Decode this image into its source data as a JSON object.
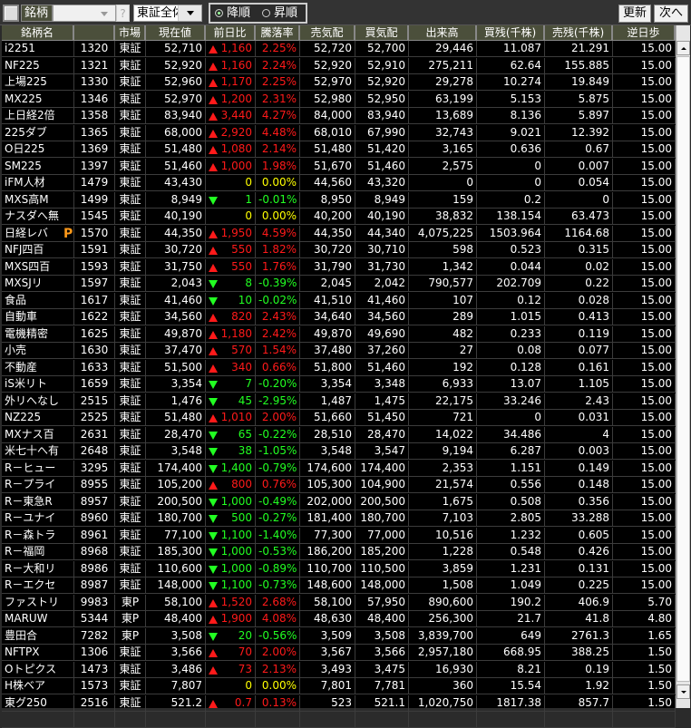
{
  "toolbar": {
    "label": "銘柄",
    "combo_value": "",
    "help": "?",
    "market_select": "東証全体",
    "sort_desc": "降順",
    "sort_asc": "昇順",
    "sort_selected": "desc",
    "refresh": "更新",
    "next": "次へ"
  },
  "colors": {
    "up": "#ff1a1a",
    "down": "#22ff22",
    "flat": "#ffff00",
    "header_bg": "#4b4f3b"
  },
  "columns": [
    "銘柄名",
    "",
    "市場",
    "現在値",
    "前日比",
    "騰落率",
    "売気配",
    "買気配",
    "出来高",
    "買残(千株)",
    "売残(千株)",
    "逆日歩"
  ],
  "rows": [
    [
      "i2251",
      "1320",
      "東証",
      "52,710",
      "up",
      "1,160",
      "2.25%",
      "52,720",
      "52,700",
      "29,446",
      "11.087",
      "21.291",
      "15.00",
      ""
    ],
    [
      "NF225",
      "1321",
      "東証",
      "52,920",
      "up",
      "1,160",
      "2.24%",
      "52,920",
      "52,910",
      "275,211",
      "62.64",
      "155.885",
      "15.00",
      ""
    ],
    [
      "上場225",
      "1330",
      "東証",
      "52,960",
      "up",
      "1,170",
      "2.25%",
      "52,970",
      "52,920",
      "29,278",
      "10.274",
      "19.849",
      "15.00",
      ""
    ],
    [
      "MX225",
      "1346",
      "東証",
      "52,970",
      "up",
      "1,200",
      "2.31%",
      "52,980",
      "52,950",
      "63,199",
      "5.153",
      "5.875",
      "15.00",
      ""
    ],
    [
      "上日経2倍",
      "1358",
      "東証",
      "83,940",
      "up",
      "3,440",
      "4.27%",
      "84,000",
      "83,940",
      "13,689",
      "8.136",
      "5.897",
      "15.00",
      ""
    ],
    [
      "225ダブ",
      "1365",
      "東証",
      "68,000",
      "up",
      "2,920",
      "4.48%",
      "68,010",
      "67,990",
      "32,743",
      "9.021",
      "12.392",
      "15.00",
      ""
    ],
    [
      "O日225",
      "1369",
      "東証",
      "51,480",
      "up",
      "1,080",
      "2.14%",
      "51,480",
      "51,420",
      "3,165",
      "0.636",
      "0.67",
      "15.00",
      ""
    ],
    [
      "SM225",
      "1397",
      "東証",
      "51,460",
      "up",
      "1,000",
      "1.98%",
      "51,670",
      "51,460",
      "2,575",
      "0",
      "0.007",
      "15.00",
      ""
    ],
    [
      "iFM人材",
      "1479",
      "東証",
      "43,430",
      "flat",
      "0",
      "0.00%",
      "44,560",
      "43,320",
      "0",
      "0",
      "0.054",
      "15.00",
      ""
    ],
    [
      "MXS高M",
      "1499",
      "東証",
      "8,949",
      "down",
      "1",
      "-0.01%",
      "8,950",
      "8,949",
      "159",
      "0.2",
      "0",
      "15.00",
      ""
    ],
    [
      "ナスダへ無",
      "1545",
      "東証",
      "40,190",
      "flat",
      "0",
      "0.00%",
      "40,200",
      "40,190",
      "38,832",
      "138.154",
      "63.473",
      "15.00",
      ""
    ],
    [
      "日経レバ",
      "1570",
      "東証",
      "44,350",
      "up",
      "1,950",
      "4.59%",
      "44,350",
      "44,340",
      "4,075,225",
      "1503.964",
      "1164.68",
      "15.00",
      "P"
    ],
    [
      "NFJ四百",
      "1591",
      "東証",
      "30,720",
      "up",
      "550",
      "1.82%",
      "30,720",
      "30,710",
      "598",
      "0.523",
      "0.315",
      "15.00",
      ""
    ],
    [
      "MXS四百",
      "1593",
      "東証",
      "31,750",
      "up",
      "550",
      "1.76%",
      "31,790",
      "31,730",
      "1,342",
      "0.044",
      "0.02",
      "15.00",
      ""
    ],
    [
      "MXSJリ",
      "1597",
      "東証",
      "2,043",
      "down",
      "8",
      "-0.39%",
      "2,045",
      "2,042",
      "790,577",
      "202.709",
      "0.22",
      "15.00",
      ""
    ],
    [
      "食品",
      "1617",
      "東証",
      "41,460",
      "down",
      "10",
      "-0.02%",
      "41,510",
      "41,460",
      "107",
      "0.12",
      "0.028",
      "15.00",
      ""
    ],
    [
      "自動車",
      "1622",
      "東証",
      "34,560",
      "up",
      "820",
      "2.43%",
      "34,640",
      "34,560",
      "289",
      "1.015",
      "0.413",
      "15.00",
      ""
    ],
    [
      "電機精密",
      "1625",
      "東証",
      "49,870",
      "up",
      "1,180",
      "2.42%",
      "49,870",
      "49,690",
      "482",
      "0.233",
      "0.119",
      "15.00",
      ""
    ],
    [
      "小売",
      "1630",
      "東証",
      "37,470",
      "up",
      "570",
      "1.54%",
      "37,480",
      "37,260",
      "27",
      "0.08",
      "0.077",
      "15.00",
      ""
    ],
    [
      "不動産",
      "1633",
      "東証",
      "51,500",
      "up",
      "340",
      "0.66%",
      "51,800",
      "51,460",
      "192",
      "0.128",
      "0.161",
      "15.00",
      ""
    ],
    [
      "iS米リト",
      "1659",
      "東証",
      "3,354",
      "down",
      "7",
      "-0.20%",
      "3,354",
      "3,348",
      "6,933",
      "13.07",
      "1.105",
      "15.00",
      ""
    ],
    [
      "外リへなし",
      "2515",
      "東証",
      "1,476",
      "down",
      "45",
      "-2.95%",
      "1,487",
      "1,475",
      "22,175",
      "33.246",
      "2.43",
      "15.00",
      ""
    ],
    [
      "NZ225",
      "2525",
      "東証",
      "51,480",
      "up",
      "1,010",
      "2.00%",
      "51,660",
      "51,450",
      "721",
      "0",
      "0.031",
      "15.00",
      ""
    ],
    [
      "MXナス百",
      "2631",
      "東証",
      "28,470",
      "down",
      "65",
      "-0.22%",
      "28,510",
      "28,470",
      "14,022",
      "34.486",
      "4",
      "15.00",
      ""
    ],
    [
      "米七十へ有",
      "2648",
      "東証",
      "3,548",
      "down",
      "38",
      "-1.05%",
      "3,548",
      "3,547",
      "9,194",
      "6.287",
      "0.003",
      "15.00",
      ""
    ],
    [
      "R－ヒュー",
      "3295",
      "東証",
      "174,400",
      "down",
      "1,400",
      "-0.79%",
      "174,600",
      "174,400",
      "2,353",
      "1.151",
      "0.149",
      "15.00",
      ""
    ],
    [
      "R－プライ",
      "8955",
      "東証",
      "105,200",
      "up",
      "800",
      "0.76%",
      "105,300",
      "104,900",
      "21,574",
      "0.556",
      "0.148",
      "15.00",
      ""
    ],
    [
      "R－東急R",
      "8957",
      "東証",
      "200,500",
      "down",
      "1,000",
      "-0.49%",
      "202,000",
      "200,500",
      "1,675",
      "0.508",
      "0.356",
      "15.00",
      ""
    ],
    [
      "R－ユナイ",
      "8960",
      "東証",
      "180,700",
      "down",
      "500",
      "-0.27%",
      "181,400",
      "180,700",
      "7,103",
      "2.805",
      "33.288",
      "15.00",
      ""
    ],
    [
      "R－森トラ",
      "8961",
      "東証",
      "77,100",
      "down",
      "1,100",
      "-1.40%",
      "77,300",
      "77,000",
      "10,516",
      "1.232",
      "0.605",
      "15.00",
      ""
    ],
    [
      "R－福岡",
      "8968",
      "東証",
      "185,300",
      "down",
      "1,000",
      "-0.53%",
      "186,200",
      "185,200",
      "1,228",
      "0.548",
      "0.426",
      "15.00",
      ""
    ],
    [
      "R－大和リ",
      "8986",
      "東証",
      "110,600",
      "down",
      "1,000",
      "-0.89%",
      "110,700",
      "110,500",
      "3,859",
      "1.231",
      "0.131",
      "15.00",
      ""
    ],
    [
      "R－エクセ",
      "8987",
      "東証",
      "148,000",
      "down",
      "1,100",
      "-0.73%",
      "148,600",
      "148,000",
      "1,508",
      "1.049",
      "0.225",
      "15.00",
      ""
    ],
    [
      "ファストリ",
      "9983",
      "東P",
      "58,100",
      "up",
      "1,520",
      "2.68%",
      "58,100",
      "57,950",
      "890,600",
      "190.2",
      "406.9",
      "5.70",
      ""
    ],
    [
      "MARUW",
      "5344",
      "東P",
      "48,400",
      "up",
      "1,900",
      "4.08%",
      "48,630",
      "48,400",
      "256,300",
      "21.7",
      "41.8",
      "4.80",
      ""
    ],
    [
      "豊田合",
      "7282",
      "東P",
      "3,508",
      "down",
      "20",
      "-0.56%",
      "3,509",
      "3,508",
      "3,839,700",
      "649",
      "2761.3",
      "1.65",
      ""
    ],
    [
      "NFTPX",
      "1306",
      "東証",
      "3,566",
      "up",
      "70",
      "2.00%",
      "3,567",
      "3,566",
      "2,957,180",
      "668.95",
      "388.25",
      "1.50",
      ""
    ],
    [
      "Oトピクス",
      "1473",
      "東証",
      "3,486",
      "up",
      "73",
      "2.13%",
      "3,493",
      "3,475",
      "16,930",
      "8.21",
      "0.19",
      "1.50",
      ""
    ],
    [
      "H株ベア",
      "1573",
      "東証",
      "7,807",
      "flat",
      "0",
      "0.00%",
      "7,801",
      "7,781",
      "360",
      "15.54",
      "1.92",
      "1.50",
      ""
    ],
    [
      "東グ250",
      "2516",
      "東証",
      "521.2",
      "up",
      "0.7",
      "0.13%",
      "523",
      "521.1",
      "1,020,750",
      "1817.38",
      "857.7",
      "1.50",
      ""
    ]
  ]
}
